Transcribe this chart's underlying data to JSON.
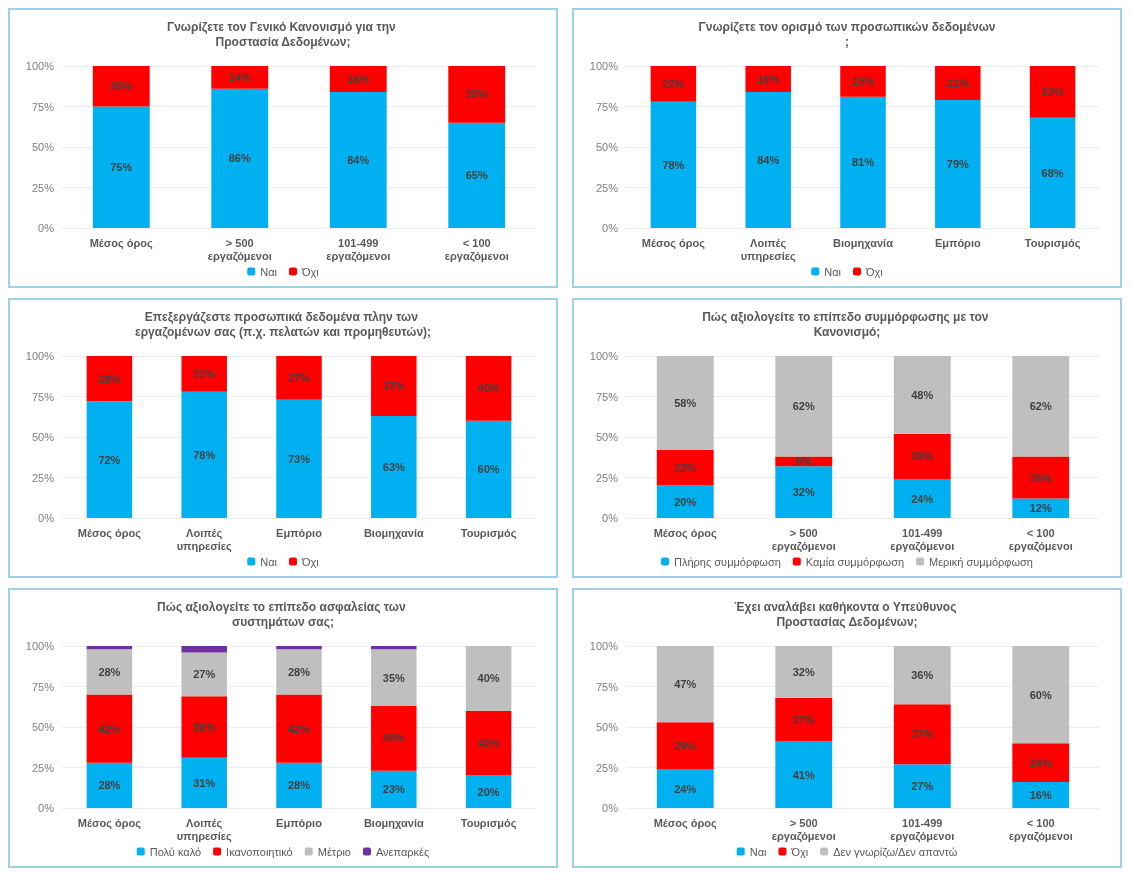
{
  "chart_data": [
    {
      "type": "bar",
      "stacked": true,
      "title": "Γνωρίζετε τον Γενικό Κανονισμό για την Προστασία Δεδομένων;",
      "categories": [
        "Μέσος όρος",
        "> 500 εργαζόμενοι",
        "101-499 εργαζόμενοι",
        "< 100 εργαζόμενοι"
      ],
      "ylim": [
        0,
        100
      ],
      "yticks": [
        {
          "value": 0,
          "label": "0%"
        },
        {
          "value": 25,
          "label": "25%"
        },
        {
          "value": 50,
          "label": "50%"
        },
        {
          "value": 75,
          "label": "75%"
        },
        {
          "value": 100,
          "label": "100%"
        }
      ],
      "grid": "y",
      "legend": "bottom",
      "series": [
        {
          "name": "Ναι",
          "color": "#00b0f0",
          "values": [
            75,
            86,
            84,
            65
          ],
          "value_labels": [
            "75%",
            "86%",
            "84%",
            "65%"
          ]
        },
        {
          "name": "Όχι",
          "color": "#ff0000",
          "values": [
            25,
            14,
            16,
            35
          ],
          "value_labels": [
            "25%",
            "14%",
            "16%",
            "35%"
          ]
        }
      ]
    },
    {
      "type": "bar",
      "stacked": true,
      "title": "Γνωρίζετε τον ορισμό των προσωπικών δεδομένων;",
      "categories": [
        "Μέσος όρος",
        "Λοιπές υπηρεσίες",
        "Βιομηχανία",
        "Εμπόριο",
        "Τουρισμός"
      ],
      "ylim": [
        0,
        100
      ],
      "yticks": [
        {
          "value": 0,
          "label": "0%"
        },
        {
          "value": 25,
          "label": "25%"
        },
        {
          "value": 50,
          "label": "50%"
        },
        {
          "value": 75,
          "label": "75%"
        },
        {
          "value": 100,
          "label": "100%"
        }
      ],
      "grid": "y",
      "legend": "bottom",
      "series": [
        {
          "name": "Ναι",
          "color": "#00b0f0",
          "values": [
            78,
            84,
            81,
            79,
            68
          ],
          "value_labels": [
            "78%",
            "84%",
            "81%",
            "79%",
            "68%"
          ]
        },
        {
          "name": "Όχι",
          "color": "#ff0000",
          "values": [
            22,
            16,
            19,
            21,
            32
          ],
          "value_labels": [
            "22%",
            "16%",
            "19%",
            "21%",
            "32%"
          ]
        }
      ]
    },
    {
      "type": "bar",
      "stacked": true,
      "title": "Επεξεργάζεστε προσωπικά δεδομένα πλην των εργαζομένων σας (π.χ. πελατών και προμηθευτών);",
      "categories": [
        "Μέσος όρος",
        "Λοιπές υπηρεσίες",
        "Εμπόριο",
        "Βιομηχανία",
        "Τουρισμός"
      ],
      "ylim": [
        0,
        100
      ],
      "yticks": [
        {
          "value": 0,
          "label": "0%"
        },
        {
          "value": 25,
          "label": "25%"
        },
        {
          "value": 50,
          "label": "50%"
        },
        {
          "value": 75,
          "label": "75%"
        },
        {
          "value": 100,
          "label": "100%"
        }
      ],
      "grid": "y",
      "legend": "bottom",
      "series": [
        {
          "name": "Ναι",
          "color": "#00b0f0",
          "values": [
            72,
            78,
            73,
            63,
            60
          ],
          "value_labels": [
            "72%",
            "78%",
            "73%",
            "63%",
            "60%"
          ]
        },
        {
          "name": "Όχι",
          "color": "#ff0000",
          "values": [
            28,
            22,
            27,
            37,
            40
          ],
          "value_labels": [
            "28%",
            "22%",
            "27%",
            "37%",
            "40%"
          ]
        }
      ]
    },
    {
      "type": "bar",
      "stacked": true,
      "title": "Πώς αξιολογείτε το επίπεδο συμμόρφωσης με τον Κανονισμό;",
      "categories": [
        "Μέσος όρος",
        "> 500 εργαζόμενοι",
        "101-499 εργαζόμενοι",
        "< 100 εργαζόμενοι"
      ],
      "ylim": [
        0,
        100
      ],
      "yticks": [
        {
          "value": 0,
          "label": "0%"
        },
        {
          "value": 25,
          "label": "25%"
        },
        {
          "value": 50,
          "label": "50%"
        },
        {
          "value": 75,
          "label": "75%"
        },
        {
          "value": 100,
          "label": "100%"
        }
      ],
      "grid": "y",
      "legend": "bottom",
      "series": [
        {
          "name": "Πλήρης συμμόρφωση",
          "color": "#00b0f0",
          "values": [
            20,
            32,
            24,
            12
          ],
          "value_labels": [
            "20%",
            "32%",
            "24%",
            "12%"
          ]
        },
        {
          "name": "Καμία συμμόρφωση",
          "color": "#ff0000",
          "values": [
            22,
            6,
            28,
            26
          ],
          "value_labels": [
            "22%",
            "6%",
            "28%",
            "26%"
          ]
        },
        {
          "name": "Μερική συμμόρφωση",
          "color": "#bfbfbf",
          "values": [
            58,
            62,
            48,
            62
          ],
          "value_labels": [
            "58%",
            "62%",
            "48%",
            "62%"
          ]
        }
      ]
    },
    {
      "type": "bar",
      "stacked": true,
      "title": "Πώς αξιολογείτε το επίπεδο ασφαλείας των συστημάτων σας;",
      "categories": [
        "Μέσος όρος",
        "Λοιπές υπηρεσίες",
        "Εμπόριο",
        "Βιομηχανία",
        "Τουρισμός"
      ],
      "ylim": [
        0,
        100
      ],
      "yticks": [
        {
          "value": 0,
          "label": "0%"
        },
        {
          "value": 25,
          "label": "25%"
        },
        {
          "value": 50,
          "label": "50%"
        },
        {
          "value": 75,
          "label": "75%"
        },
        {
          "value": 100,
          "label": "100%"
        }
      ],
      "grid": "y",
      "legend": "bottom",
      "series": [
        {
          "name": "Πολύ καλό",
          "color": "#00b0f0",
          "values": [
            28,
            31,
            28,
            23,
            20
          ],
          "value_labels": [
            "28%",
            "31%",
            "28%",
            "23%",
            "20%"
          ]
        },
        {
          "name": "Ικανοποιητικό",
          "color": "#ff0000",
          "values": [
            42,
            38,
            42,
            40,
            40
          ],
          "value_labels": [
            "42%",
            "38%",
            "42%",
            "40%",
            "40%"
          ]
        },
        {
          "name": "Μέτριο",
          "color": "#bfbfbf",
          "values": [
            28,
            27,
            28,
            35,
            40
          ],
          "value_labels": [
            "28%",
            "27%",
            "28%",
            "35%",
            "40%"
          ]
        },
        {
          "name": "Ανεπαρκές",
          "color": "#7030a0",
          "values": [
            2,
            4,
            2,
            2,
            null
          ],
          "value_labels": [
            null,
            null,
            null,
            null,
            null
          ]
        }
      ]
    },
    {
      "type": "bar",
      "stacked": true,
      "title": "Έχει αναλάβει καθήκοντα ο Υπεύθυνος Προστασίας Δεδομένων;",
      "categories": [
        "Μέσος όρος",
        "> 500 εργαζόμενοι",
        "101-499 εργαζόμενοι",
        "< 100 εργαζόμενοι"
      ],
      "ylim": [
        0,
        100
      ],
      "yticks": [
        {
          "value": 0,
          "label": "0%"
        },
        {
          "value": 25,
          "label": "25%"
        },
        {
          "value": 50,
          "label": "50%"
        },
        {
          "value": 75,
          "label": "75%"
        },
        {
          "value": 100,
          "label": "100%"
        }
      ],
      "grid": "y",
      "legend": "bottom",
      "series": [
        {
          "name": "Ναι",
          "color": "#00b0f0",
          "values": [
            24,
            41,
            27,
            16
          ],
          "value_labels": [
            "24%",
            "41%",
            "27%",
            "16%"
          ]
        },
        {
          "name": "Όχι",
          "color": "#ff0000",
          "values": [
            29,
            27,
            37,
            24
          ],
          "value_labels": [
            "29%",
            "27%",
            "37%",
            "24%"
          ]
        },
        {
          "name": "Δεν γνωρίζω/Δεν απαντώ",
          "color": "#bfbfbf",
          "values": [
            47,
            32,
            36,
            60
          ],
          "value_labels": [
            "47%",
            "32%",
            "36%",
            "60%"
          ]
        }
      ]
    }
  ]
}
